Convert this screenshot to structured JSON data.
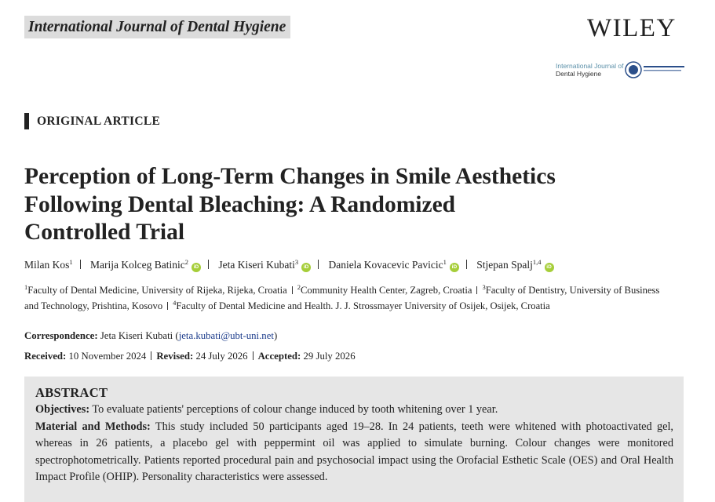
{
  "header": {
    "journal": "International Journal of Dental Hygiene",
    "publisher": "WILEY",
    "logo": [
      "International Journal of",
      "Dental Hygiene"
    ]
  },
  "article_type": "ORIGINAL ARTICLE",
  "title": [
    "Perception of Long-Term Changes in Smile Aesthetics",
    "Following Dental Bleaching: A Randomized",
    "Controlled Trial"
  ],
  "orcid_icon": "iD",
  "authors": [
    {
      "name": "Milan Kos",
      "affil": "1"
    },
    {
      "name": "Marija Kolceg Batinic",
      "affil": "2"
    },
    {
      "name": "Jeta Kiseri Kubati",
      "affil": "3"
    },
    {
      "name": "Daniela Kovacevic Pavicic",
      "affil": "1"
    },
    {
      "name": "Stjepan Spalj",
      "affil": "1,4"
    }
  ],
  "affiliations": [
    {
      "sup": "1",
      "text": "Faculty of Dental Medicine, University of Rijeka, Rijeka, Croatia"
    },
    {
      "sup": "2",
      "text": "Community Health Center, Zagreb, Croatia"
    },
    {
      "sup": "3",
      "text": "Faculty of Dentistry, University of Business and Technology, Prishtina, Kosovo"
    },
    {
      "sup": "4",
      "text": "Faculty of Dental Medicine and Health. J. J. Strossmayer University of Osijek, Osijek, Croatia"
    }
  ],
  "correspondence": {
    "label": "Correspondence:",
    "name": "Jeta Kiseri Kubati",
    "brackets": [
      "(",
      ")"
    ],
    "email": "jeta.kubati@ubt-uni.net"
  },
  "dates": [
    {
      "label": "Received:",
      "value": "10 November 2024"
    },
    {
      "label": "Revised:",
      "value": "24 July 2026"
    },
    {
      "label": "Accepted:",
      "value": "29 July 2026"
    }
  ],
  "abstract": {
    "heading": "ABSTRACT",
    "sections": [
      {
        "label": "Objectives:",
        "text": "To evaluate patients' perceptions of colour change induced by tooth whitening over 1 year."
      },
      {
        "label": "Material and Methods:",
        "text": "This study included 50 participants aged 19–28. In 24 patients, teeth were whitened with photoac­tivated gel, whereas in 26 patients, a placebo gel with peppermint oil was applied to simulate burning. Colour changes were monitored spectrophotometrically. Patients reported procedural pain and psychosocial impact using the Orofacial Esthetic Scale (OES) and Oral Health Impact Profile (OHIP). Personality characteristics were assessed."
      }
    ]
  }
}
